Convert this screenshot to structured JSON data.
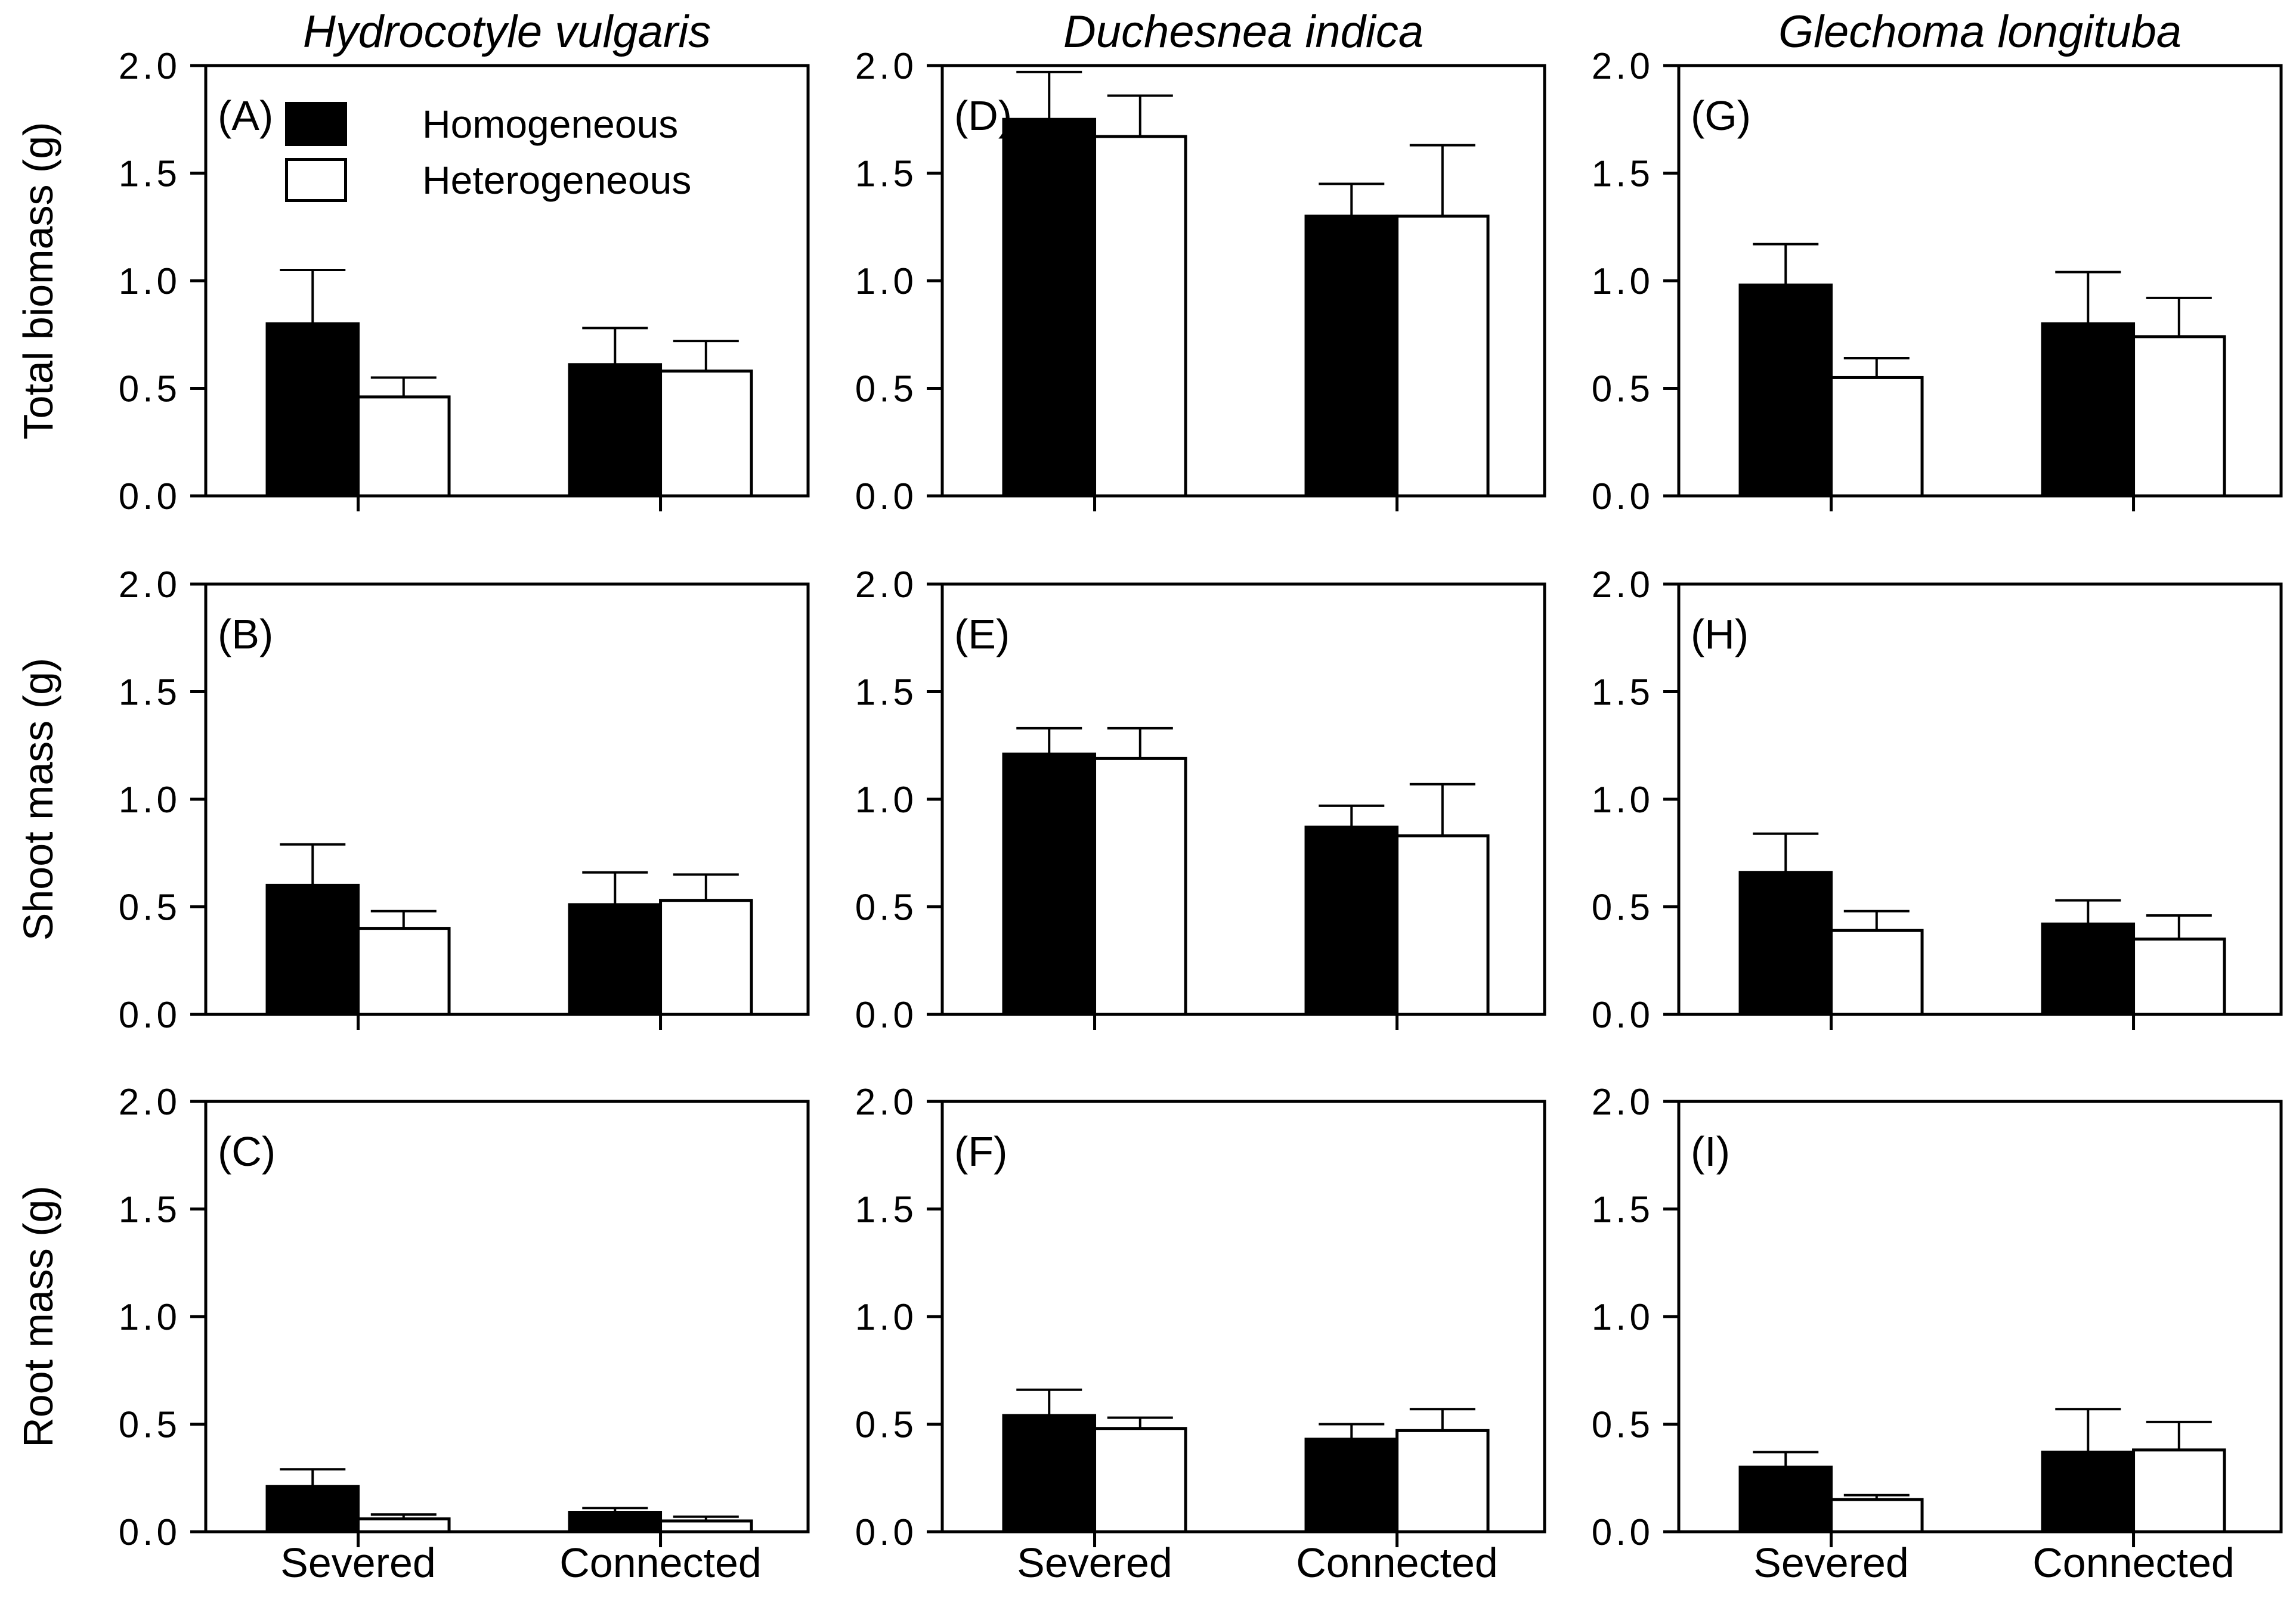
{
  "figure": {
    "columns": [
      {
        "title": "Hydrocotyle vulgaris"
      },
      {
        "title": "Duchesnea indica"
      },
      {
        "title": "Glechoma longituba"
      }
    ],
    "rows": [
      {
        "ylabel": "Total biomass (g)"
      },
      {
        "ylabel": "Shoot mass (g)"
      },
      {
        "ylabel": "Root mass (g)"
      }
    ],
    "legend": {
      "items": [
        {
          "label": "Homogeneous",
          "fill": "#000000"
        },
        {
          "label": "Heterogeneous",
          "fill": "#ffffff"
        }
      ]
    },
    "x_categories": [
      "Severed",
      "Connected"
    ],
    "colors": {
      "foreground": "#000000",
      "background": "#ffffff"
    }
  },
  "chart_data": [
    {
      "panel": "A",
      "label": "(A)",
      "row": 0,
      "col": 0,
      "type": "bar",
      "column_title": "Hydrocotyle vulgaris",
      "ylabel": "Total biomass (g)",
      "categories": [
        "Severed",
        "Connected"
      ],
      "ylim": [
        0.0,
        2.0
      ],
      "ytick_step": 0.5,
      "grid": false,
      "series": [
        {
          "name": "Homogeneous",
          "fill": "#000000",
          "values": [
            0.8,
            0.61
          ],
          "errors_plus": [
            0.25,
            0.17
          ]
        },
        {
          "name": "Heterogeneous",
          "fill": "#ffffff",
          "values": [
            0.46,
            0.58
          ],
          "errors_plus": [
            0.09,
            0.14
          ]
        }
      ]
    },
    {
      "panel": "B",
      "label": "(B)",
      "row": 1,
      "col": 0,
      "type": "bar",
      "column_title": "Hydrocotyle vulgaris",
      "ylabel": "Shoot mass (g)",
      "categories": [
        "Severed",
        "Connected"
      ],
      "ylim": [
        0.0,
        2.0
      ],
      "ytick_step": 0.5,
      "grid": false,
      "series": [
        {
          "name": "Homogeneous",
          "fill": "#000000",
          "values": [
            0.6,
            0.51
          ],
          "errors_plus": [
            0.19,
            0.15
          ]
        },
        {
          "name": "Heterogeneous",
          "fill": "#ffffff",
          "values": [
            0.4,
            0.53
          ],
          "errors_plus": [
            0.08,
            0.12
          ]
        }
      ]
    },
    {
      "panel": "C",
      "label": "(C)",
      "row": 2,
      "col": 0,
      "type": "bar",
      "column_title": "Hydrocotyle vulgaris",
      "ylabel": "Root mass (g)",
      "categories": [
        "Severed",
        "Connected"
      ],
      "ylim": [
        0.0,
        2.0
      ],
      "ytick_step": 0.5,
      "grid": false,
      "series": [
        {
          "name": "Homogeneous",
          "fill": "#000000",
          "values": [
            0.21,
            0.09
          ],
          "errors_plus": [
            0.08,
            0.02
          ]
        },
        {
          "name": "Heterogeneous",
          "fill": "#ffffff",
          "values": [
            0.06,
            0.05
          ],
          "errors_plus": [
            0.02,
            0.02
          ]
        }
      ]
    },
    {
      "panel": "D",
      "label": "(D)",
      "row": 0,
      "col": 1,
      "type": "bar",
      "column_title": "Duchesnea indica",
      "ylabel": "Total biomass (g)",
      "categories": [
        "Severed",
        "Connected"
      ],
      "ylim": [
        0.0,
        2.0
      ],
      "ytick_step": 0.5,
      "grid": false,
      "series": [
        {
          "name": "Homogeneous",
          "fill": "#000000",
          "values": [
            1.75,
            1.3
          ],
          "errors_plus": [
            0.22,
            0.15
          ]
        },
        {
          "name": "Heterogeneous",
          "fill": "#ffffff",
          "values": [
            1.67,
            1.3
          ],
          "errors_plus": [
            0.19,
            0.33
          ]
        }
      ]
    },
    {
      "panel": "E",
      "label": "(E)",
      "row": 1,
      "col": 1,
      "type": "bar",
      "column_title": "Duchesnea indica",
      "ylabel": "Shoot mass (g)",
      "categories": [
        "Severed",
        "Connected"
      ],
      "ylim": [
        0.0,
        2.0
      ],
      "ytick_step": 0.5,
      "grid": false,
      "series": [
        {
          "name": "Homogeneous",
          "fill": "#000000",
          "values": [
            1.21,
            0.87
          ],
          "errors_plus": [
            0.12,
            0.1
          ]
        },
        {
          "name": "Heterogeneous",
          "fill": "#ffffff",
          "values": [
            1.19,
            0.83
          ],
          "errors_plus": [
            0.14,
            0.24
          ]
        }
      ]
    },
    {
      "panel": "F",
      "label": "(F)",
      "row": 2,
      "col": 1,
      "type": "bar",
      "column_title": "Duchesnea indica",
      "ylabel": "Root mass (g)",
      "categories": [
        "Severed",
        "Connected"
      ],
      "ylim": [
        0.0,
        2.0
      ],
      "ytick_step": 0.5,
      "grid": false,
      "series": [
        {
          "name": "Homogeneous",
          "fill": "#000000",
          "values": [
            0.54,
            0.43
          ],
          "errors_plus": [
            0.12,
            0.07
          ]
        },
        {
          "name": "Heterogeneous",
          "fill": "#ffffff",
          "values": [
            0.48,
            0.47
          ],
          "errors_plus": [
            0.05,
            0.1
          ]
        }
      ]
    },
    {
      "panel": "G",
      "label": "(G)",
      "row": 0,
      "col": 2,
      "type": "bar",
      "column_title": "Glechoma longituba",
      "ylabel": "Total biomass (g)",
      "categories": [
        "Severed",
        "Connected"
      ],
      "ylim": [
        0.0,
        2.0
      ],
      "ytick_step": 0.5,
      "grid": false,
      "series": [
        {
          "name": "Homogeneous",
          "fill": "#000000",
          "values": [
            0.98,
            0.8
          ],
          "errors_plus": [
            0.19,
            0.24
          ]
        },
        {
          "name": "Heterogeneous",
          "fill": "#ffffff",
          "values": [
            0.55,
            0.74
          ],
          "errors_plus": [
            0.09,
            0.18
          ]
        }
      ]
    },
    {
      "panel": "H",
      "label": "(H)",
      "row": 1,
      "col": 2,
      "type": "bar",
      "column_title": "Glechoma longituba",
      "ylabel": "Shoot mass (g)",
      "categories": [
        "Severed",
        "Connected"
      ],
      "ylim": [
        0.0,
        2.0
      ],
      "ytick_step": 0.5,
      "grid": false,
      "series": [
        {
          "name": "Homogeneous",
          "fill": "#000000",
          "values": [
            0.66,
            0.42
          ],
          "errors_plus": [
            0.18,
            0.11
          ]
        },
        {
          "name": "Heterogeneous",
          "fill": "#ffffff",
          "values": [
            0.39,
            0.35
          ],
          "errors_plus": [
            0.09,
            0.11
          ]
        }
      ]
    },
    {
      "panel": "I",
      "label": "(I)",
      "row": 2,
      "col": 2,
      "type": "bar",
      "column_title": "Glechoma longituba",
      "ylabel": "Root mass (g)",
      "categories": [
        "Severed",
        "Connected"
      ],
      "ylim": [
        0.0,
        2.0
      ],
      "ytick_step": 0.5,
      "grid": false,
      "series": [
        {
          "name": "Homogeneous",
          "fill": "#000000",
          "values": [
            0.3,
            0.37
          ],
          "errors_plus": [
            0.07,
            0.2
          ]
        },
        {
          "name": "Heterogeneous",
          "fill": "#ffffff",
          "values": [
            0.15,
            0.38
          ],
          "errors_plus": [
            0.02,
            0.13
          ]
        }
      ]
    }
  ]
}
